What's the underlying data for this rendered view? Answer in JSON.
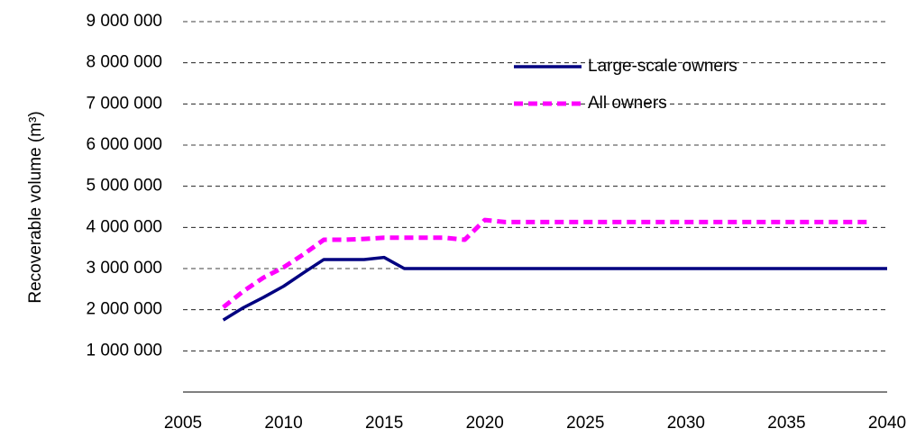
{
  "chart_data": {
    "type": "line",
    "y_label": "Recoverable volume (m³)",
    "x": [
      2007,
      2008,
      2009,
      2010,
      2011,
      2012,
      2013,
      2014,
      2015,
      2016,
      2017,
      2018,
      2019,
      2020,
      2021,
      2022,
      2023,
      2024,
      2025,
      2026,
      2027,
      2028,
      2029,
      2030,
      2031,
      2032,
      2033,
      2034,
      2035,
      2036,
      2037,
      2038,
      2039,
      2040
    ],
    "series": [
      {
        "name": "Large-scale owners",
        "color": "#000080",
        "dashed": false,
        "values": [
          1750000,
          2050000,
          2300000,
          2570000,
          2900000,
          3220000,
          3220000,
          3220000,
          3270000,
          3000000,
          3000000,
          3000000,
          3000000,
          3000000,
          3000000,
          3000000,
          3000000,
          3000000,
          3000000,
          3000000,
          3000000,
          3000000,
          3000000,
          3000000,
          3000000,
          3000000,
          3000000,
          3000000,
          3000000,
          3000000,
          3000000,
          3000000,
          3000000,
          3000000
        ]
      },
      {
        "name": "All owners",
        "color": "#ff00ff",
        "dashed": true,
        "values": [
          2060000,
          2450000,
          2780000,
          3030000,
          3350000,
          3700000,
          3700000,
          3720000,
          3750000,
          3750000,
          3750000,
          3750000,
          3700000,
          4180000,
          4130000,
          4130000,
          4130000,
          4130000,
          4130000,
          4130000,
          4130000,
          4130000,
          4130000,
          4130000,
          4130000,
          4130000,
          4130000,
          4130000,
          4130000,
          4130000,
          4130000,
          4130000,
          4130000,
          null
        ]
      }
    ],
    "xlim": [
      2005,
      2040
    ],
    "xticks": [
      2005,
      2010,
      2015,
      2020,
      2025,
      2030,
      2035,
      2040
    ],
    "ylim": [
      0,
      9000000
    ],
    "yticks": [
      {
        "value": 1000000,
        "label": "1 000 000"
      },
      {
        "value": 2000000,
        "label": "2 000 000"
      },
      {
        "value": 3000000,
        "label": "3 000 000"
      },
      {
        "value": 4000000,
        "label": "4 000 000"
      },
      {
        "value": 5000000,
        "label": "5 000 000"
      },
      {
        "value": 6000000,
        "label": "6 000 000"
      },
      {
        "value": 7000000,
        "label": "7 000 000"
      },
      {
        "value": 8000000,
        "label": "8 000 000"
      },
      {
        "value": 9000000,
        "label": "9 000 000"
      }
    ],
    "grid": true,
    "legend": "top-right"
  }
}
